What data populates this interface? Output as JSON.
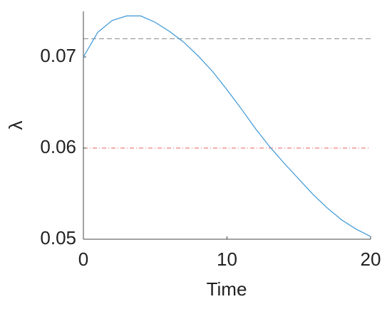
{
  "chart_data": {
    "type": "line",
    "xlabel": "Time",
    "ylabel": "λ",
    "x": [
      0,
      1,
      2,
      3,
      4,
      5,
      6,
      7,
      8,
      9,
      10,
      11,
      12,
      13,
      14,
      15,
      16,
      17,
      18,
      19,
      20
    ],
    "series": [
      {
        "color": "#3d97d6",
        "values": [
          0.07,
          0.0727,
          0.074,
          0.0745,
          0.0745,
          0.0738,
          0.0728,
          0.0716,
          0.0701,
          0.0684,
          0.0664,
          0.0643,
          0.0621,
          0.0601,
          0.0583,
          0.0566,
          0.0549,
          0.0534,
          0.0521,
          0.0511,
          0.0503
        ]
      }
    ],
    "hlines": [
      {
        "value": 0.072,
        "color": "#888888",
        "dash": "7 4"
      },
      {
        "value": 0.06,
        "color": "#e8625c",
        "dash": "6 3 1 3"
      }
    ],
    "xlim": [
      0,
      20
    ],
    "xticks": [
      0,
      10,
      20
    ],
    "ylim": [
      0.05,
      0.075
    ],
    "yticks": [
      0.05,
      0.06,
      0.07
    ]
  }
}
